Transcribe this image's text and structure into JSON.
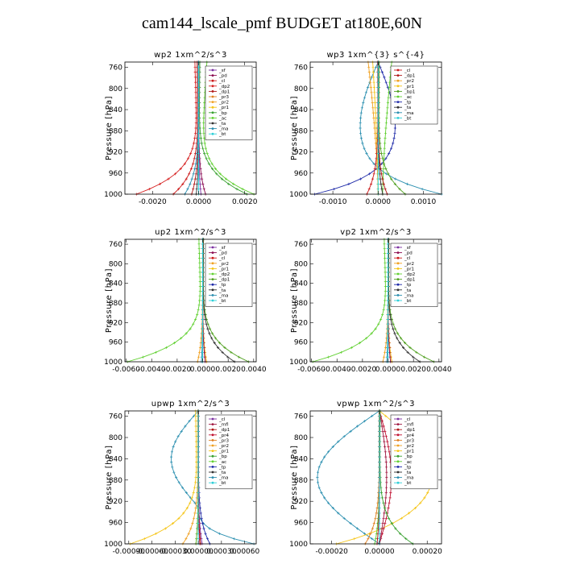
{
  "title": "cam144_lscale_pmf  BUDGET at180E,60N",
  "colors": {
    "sf": "#7b2fa0",
    "pd": "#8b0a50",
    "cl": "#cc1a1a",
    "dp2": "#d62020",
    "dp1": "#b01818",
    "pr4": "#c01030",
    "pr3": "#e08020",
    "pr2": "#f0a020",
    "pr1": "#f5c518",
    "bp1": "#50a020",
    "bp": "#38a030",
    "ac": "#60d030",
    "tp": "#1e2aa8",
    "ta": "#303030",
    "ma": "#2b8fb0",
    "bt": "#30d0d8",
    "mfl": "#a01840"
  },
  "chart_data": [
    {
      "type": "line",
      "title": "wp2  1xm^2/s^3",
      "ylabel": "Pressure [hPa]",
      "ylim": [
        1000,
        750
      ],
      "yticks": [
        "760",
        "800",
        "840",
        "880",
        "920",
        "960",
        "1000"
      ],
      "xlim": [
        -0.0032,
        0.0025
      ],
      "xticks": [
        {
          "v": -0.002,
          "t": "-0.0020"
        },
        {
          "v": 0,
          "t": "0.0000"
        },
        {
          "v": 0.002,
          "t": "0.0020"
        }
      ],
      "legend": [
        "_sf",
        "_pd",
        "_cl",
        "_dp2",
        "_dp1",
        "_pr3",
        "_pr2",
        "_pr1",
        "_bp",
        "_ac",
        "_ta",
        "_ma",
        "_bt"
      ],
      "series": [
        {
          "name": "_dp2",
          "color": "dp2",
          "shape": "pr",
          "amp": -0.0027,
          "s": 0,
          "t": 0.12
        },
        {
          "name": "_cl",
          "color": "cl",
          "shape": "pr",
          "amp": -0.0011,
          "s": 0,
          "t": 0.12
        },
        {
          "name": "_dp1",
          "color": "dp1",
          "shape": "pr",
          "amp": -0.0003,
          "s": 0,
          "t": 0.1
        },
        {
          "name": "_ac",
          "color": "ac",
          "shape": "pr",
          "amp": 0.0024,
          "s": 0,
          "t": 0.3
        },
        {
          "name": "_bp",
          "color": "bp",
          "shape": "pr",
          "amp": 0.0021,
          "s": 0,
          "t": 0.05
        },
        {
          "name": "_pd",
          "color": "pd",
          "shape": "pr",
          "amp": 0.0003,
          "s": 0,
          "t": 0.05
        },
        {
          "name": "_sf",
          "color": "sf",
          "shape": "pr",
          "amp": 0.0001,
          "s": 0,
          "t": 0.05
        },
        {
          "name": "_ma",
          "color": "ma",
          "shape": "pr",
          "amp": -0.0006,
          "s": 0,
          "t": 0.05
        },
        {
          "name": "_ta",
          "color": "ta",
          "shape": "pr",
          "amp": -0.0001,
          "s": 0,
          "t": 0.05
        },
        {
          "name": "_bt",
          "color": "bt",
          "shape": "pr",
          "amp": 0.0,
          "s": 0,
          "t": 0.05
        }
      ]
    },
    {
      "type": "line",
      "title": "wp3  1xm^{3} s^{-4}",
      "ylabel": "Pressure [hPa]",
      "ylim": [
        1000,
        750
      ],
      "yticks": [
        "760",
        "800",
        "840",
        "880",
        "920",
        "960",
        "1000"
      ],
      "xlim": [
        -0.0015,
        0.0014
      ],
      "xticks": [
        {
          "v": -0.001,
          "t": "-0.0010"
        },
        {
          "v": 0,
          "t": "0.0000"
        },
        {
          "v": 0.001,
          "t": "0.0010"
        }
      ],
      "legend": [
        "_cl",
        "_dp1",
        "_pr2",
        "_pr1",
        "_bp1",
        "_ac",
        "_tp",
        "_ta",
        "_ma",
        "_bt"
      ],
      "series": [
        {
          "name": "_ma",
          "color": "ma",
          "shape": "bulge",
          "amp": -0.0004,
          "s": 0.0014,
          "t": 0.03
        },
        {
          "name": "_tp",
          "color": "tp",
          "shape": "bulge",
          "amp": 0.00038,
          "s": -0.0014,
          "t": 0.04
        },
        {
          "name": "_pr2",
          "color": "pr2",
          "shape": "top",
          "amp": -0.00022,
          "s": 0,
          "t": 0.5
        },
        {
          "name": "_pr1",
          "color": "pr1",
          "shape": "top",
          "amp": -0.00012,
          "s": 0,
          "t": 0.6
        },
        {
          "name": "_ac",
          "color": "ac",
          "shape": "top",
          "amp": 0.0002,
          "s": 0.0001,
          "t": 0.5
        },
        {
          "name": "_bp1",
          "color": "bp1",
          "shape": "pr",
          "amp": 0.0006,
          "s": 0,
          "t": 0.08
        },
        {
          "name": "_cl",
          "color": "cl",
          "shape": "pr",
          "amp": -0.00025,
          "s": 0,
          "t": 0.08
        },
        {
          "name": "_dp1",
          "color": "dp1",
          "shape": "pr",
          "amp": 0.0002,
          "s": 0,
          "t": 0.06
        },
        {
          "name": "_ta",
          "color": "ta",
          "shape": "pr",
          "amp": 0.0001,
          "s": 0,
          "t": 0.05
        },
        {
          "name": "_bt",
          "color": "bt",
          "shape": "pr",
          "amp": 0.0,
          "s": 0,
          "t": 0.05
        }
      ]
    },
    {
      "type": "line",
      "title": "up2  1xm^2/s^3",
      "ylabel": "Pressure [hPa]",
      "ylim": [
        1000,
        750
      ],
      "yticks": [
        "760",
        "800",
        "840",
        "880",
        "920",
        "960",
        "1000"
      ],
      "xlim": [
        -0.0061,
        0.0042
      ],
      "xticks": [
        {
          "v": -0.006,
          "t": "-0.0060"
        },
        {
          "v": -0.004,
          "t": "-0.0040"
        },
        {
          "v": -0.002,
          "t": "-0.0020"
        },
        {
          "v": 0,
          "t": "0.0000"
        },
        {
          "v": 0.002,
          "t": "0.0020"
        },
        {
          "v": 0.004,
          "t": "0.0040"
        }
      ],
      "legend": [
        "_sf",
        "_pd",
        "_cl",
        "_pr2",
        "_pr1",
        "_dp2",
        "_dp1",
        "_tp",
        "_ta",
        "_ma",
        "_bt"
      ],
      "series": [
        {
          "name": "_dp2",
          "color": "ac",
          "shape": "pr",
          "amp": -0.0059,
          "s": 0,
          "t": 0.1
        },
        {
          "name": "_dp1",
          "color": "bp1",
          "shape": "pr",
          "amp": 0.0036,
          "s": 0,
          "t": 0.04
        },
        {
          "name": "_ta",
          "color": "ta",
          "shape": "pr",
          "amp": 0.0025,
          "s": 0,
          "t": 0.04
        },
        {
          "name": "_cl",
          "color": "cl",
          "shape": "pr",
          "amp": 0.0003,
          "s": 0,
          "t": 0.06
        },
        {
          "name": "_pr2",
          "color": "pr2",
          "shape": "pr",
          "amp": -0.0004,
          "s": 0,
          "t": 0.05
        },
        {
          "name": "_pr1",
          "color": "pr1",
          "shape": "pr",
          "amp": 0.0003,
          "s": 0,
          "t": 0.05
        },
        {
          "name": "_sf",
          "color": "sf",
          "shape": "pr",
          "amp": 0.0,
          "s": 0,
          "t": 0.05
        },
        {
          "name": "_pd",
          "color": "pd",
          "shape": "pr",
          "amp": 0.0002,
          "s": 0,
          "t": 0.05
        },
        {
          "name": "_ma",
          "color": "ma",
          "shape": "pr",
          "amp": -0.0001,
          "s": 0,
          "t": 0.05
        },
        {
          "name": "_bt",
          "color": "bt",
          "shape": "pr",
          "amp": 0.0,
          "s": 0,
          "t": 0.05
        }
      ]
    },
    {
      "type": "line",
      "title": "vp2  1xm^2/s^3",
      "ylabel": "Pressure [hPa]",
      "ylim": [
        1000,
        750
      ],
      "yticks": [
        "760",
        "800",
        "840",
        "880",
        "920",
        "960",
        "1000"
      ],
      "xlim": [
        -0.0061,
        0.0042
      ],
      "xticks": [
        {
          "v": -0.006,
          "t": "-0.0060"
        },
        {
          "v": -0.004,
          "t": "-0.0040"
        },
        {
          "v": -0.002,
          "t": "-0.0020"
        },
        {
          "v": 0,
          "t": "0.0000"
        },
        {
          "v": 0.002,
          "t": "0.0020"
        },
        {
          "v": 0.004,
          "t": "0.0040"
        }
      ],
      "legend": [
        "_sf",
        "_pd",
        "_cl",
        "_pr2",
        "_pr1",
        "_dp2",
        "_dp1",
        "_tp",
        "_ta",
        "_ma",
        "_bt"
      ],
      "series": [
        {
          "name": "_dp2",
          "color": "ac",
          "shape": "pr",
          "amp": -0.0059,
          "s": 0,
          "t": 0.1
        },
        {
          "name": "_dp1",
          "color": "bp1",
          "shape": "pr",
          "amp": 0.0036,
          "s": 0,
          "t": 0.04
        },
        {
          "name": "_ta",
          "color": "ta",
          "shape": "pr",
          "amp": 0.0025,
          "s": 0,
          "t": 0.04
        },
        {
          "name": "_cl",
          "color": "cl",
          "shape": "pr",
          "amp": 0.0003,
          "s": 0,
          "t": 0.06
        },
        {
          "name": "_pr2",
          "color": "pr2",
          "shape": "pr",
          "amp": -0.0004,
          "s": 0,
          "t": 0.05
        },
        {
          "name": "_pr1",
          "color": "pr1",
          "shape": "pr",
          "amp": 0.0003,
          "s": 0,
          "t": 0.05
        },
        {
          "name": "_sf",
          "color": "sf",
          "shape": "pr",
          "amp": 0.0,
          "s": 0,
          "t": 0.05
        },
        {
          "name": "_pd",
          "color": "pd",
          "shape": "pr",
          "amp": 0.0002,
          "s": 0,
          "t": 0.05
        },
        {
          "name": "_ma",
          "color": "ma",
          "shape": "pr",
          "amp": -0.0001,
          "s": 0,
          "t": 0.05
        },
        {
          "name": "_bt",
          "color": "bt",
          "shape": "pr",
          "amp": 0.0,
          "s": 0,
          "t": 0.05
        }
      ]
    },
    {
      "type": "line",
      "title": "upwp  1xm^2/s^3",
      "ylabel": "Pressure [hPa]",
      "ylim": [
        1000,
        750
      ],
      "yticks": [
        "760",
        "800",
        "840",
        "880",
        "920",
        "960",
        "1000"
      ],
      "xlim": [
        -0.00095,
        0.00075
      ],
      "xticks": [
        {
          "v": -0.0009,
          "t": "-0.00090"
        },
        {
          "v": -0.0006,
          "t": "-0.00060"
        },
        {
          "v": -0.0003,
          "t": "-0.00030"
        },
        {
          "v": 0,
          "t": "0.00000"
        },
        {
          "v": 0.0003,
          "t": "0.00030"
        },
        {
          "v": 0.0006,
          "t": "0.00060"
        }
      ],
      "legend": [
        "_cl",
        "_mfl",
        "_dp1",
        "_pr4",
        "_pr3",
        "_pr2",
        "_pr1",
        "_bp",
        "_ac",
        "_tp",
        "_ta",
        "_ma",
        "_bt"
      ],
      "series": [
        {
          "name": "_ma",
          "color": "ma",
          "shape": "cross",
          "amp": 0.00072,
          "s": -0.00035,
          "t": 0.03
        },
        {
          "name": "_pr1",
          "color": "pr1",
          "shape": "pr",
          "amp": -0.00088,
          "s": 0,
          "t": 0.08
        },
        {
          "name": "_pr2",
          "color": "pr2",
          "shape": "pr",
          "amp": -0.0002,
          "s": 0,
          "t": 0.08
        },
        {
          "name": "_tp",
          "color": "tp",
          "shape": "pr",
          "amp": 0.00015,
          "s": 0,
          "t": 0.05
        },
        {
          "name": "_cl",
          "color": "sf",
          "shape": "pr",
          "amp": 5e-05,
          "s": 0,
          "t": 0.05
        },
        {
          "name": "_mfl",
          "color": "mfl",
          "shape": "pr",
          "amp": -3e-05,
          "s": 0,
          "t": 0.05
        },
        {
          "name": "_dp1",
          "color": "dp1",
          "shape": "pr",
          "amp": 3e-05,
          "s": 0,
          "t": 0.05
        },
        {
          "name": "_pr4",
          "color": "pr4",
          "shape": "pr",
          "amp": 2e-05,
          "s": 0,
          "t": 0.05
        },
        {
          "name": "_ac",
          "color": "ac",
          "shape": "pr",
          "amp": -3e-05,
          "s": 0,
          "t": 0.05
        },
        {
          "name": "_bt",
          "color": "bt",
          "shape": "pr",
          "amp": 0.0,
          "s": 0,
          "t": 0.05
        }
      ]
    },
    {
      "type": "line",
      "title": "vpwp  1xm^2/s^3",
      "ylabel": "Pressure [hPa]",
      "ylim": [
        1000,
        750
      ],
      "yticks": [
        "760",
        "800",
        "840",
        "880",
        "920",
        "960",
        "1000"
      ],
      "xlim": [
        -0.00029,
        0.00026
      ],
      "xticks": [
        {
          "v": -0.0002,
          "t": "-0.00020"
        },
        {
          "v": 0,
          "t": "0.00000"
        },
        {
          "v": 0.0002,
          "t": "0.00020"
        }
      ],
      "legend": [
        "_cl",
        "_mfl",
        "_dp1",
        "_pr4",
        "_pr3",
        "_pr2",
        "_pr1",
        "_bp",
        "_ac",
        "_tp",
        "_ta",
        "_ma",
        "_bt"
      ],
      "series": [
        {
          "name": "_ma",
          "color": "ma",
          "shape": "bulge",
          "amp": -0.00026,
          "s": 0,
          "t": 0
        },
        {
          "name": "_pr1",
          "color": "pr1",
          "shape": "bulge",
          "amp": 0.00022,
          "s": -0.00018,
          "t": 0
        },
        {
          "name": "_pr4",
          "color": "pr4",
          "shape": "bulge",
          "amp": 5e-05,
          "s": 0,
          "t": 0
        },
        {
          "name": "_mfl",
          "color": "mfl",
          "shape": "bulge",
          "amp": 3e-05,
          "s": 0,
          "t": 0
        },
        {
          "name": "_bp",
          "color": "bp",
          "shape": "pr",
          "amp": 0.00014,
          "s": 0,
          "t": 0.04
        },
        {
          "name": "_ac",
          "color": "ac",
          "shape": "pr",
          "amp": -2e-05,
          "s": 0,
          "t": 0.08
        },
        {
          "name": "_pr3",
          "color": "pr3",
          "shape": "pr",
          "amp": -6e-05,
          "s": 0,
          "t": 0.06
        },
        {
          "name": "_cl",
          "color": "sf",
          "shape": "pr",
          "amp": 0.0,
          "s": 0,
          "t": 0.05
        },
        {
          "name": "_dp1",
          "color": "dp1",
          "shape": "pr",
          "amp": -1e-05,
          "s": 0,
          "t": 0.05
        },
        {
          "name": "_bt",
          "color": "bt",
          "shape": "pr",
          "amp": 0.0,
          "s": 0,
          "t": 0.05
        }
      ]
    }
  ]
}
